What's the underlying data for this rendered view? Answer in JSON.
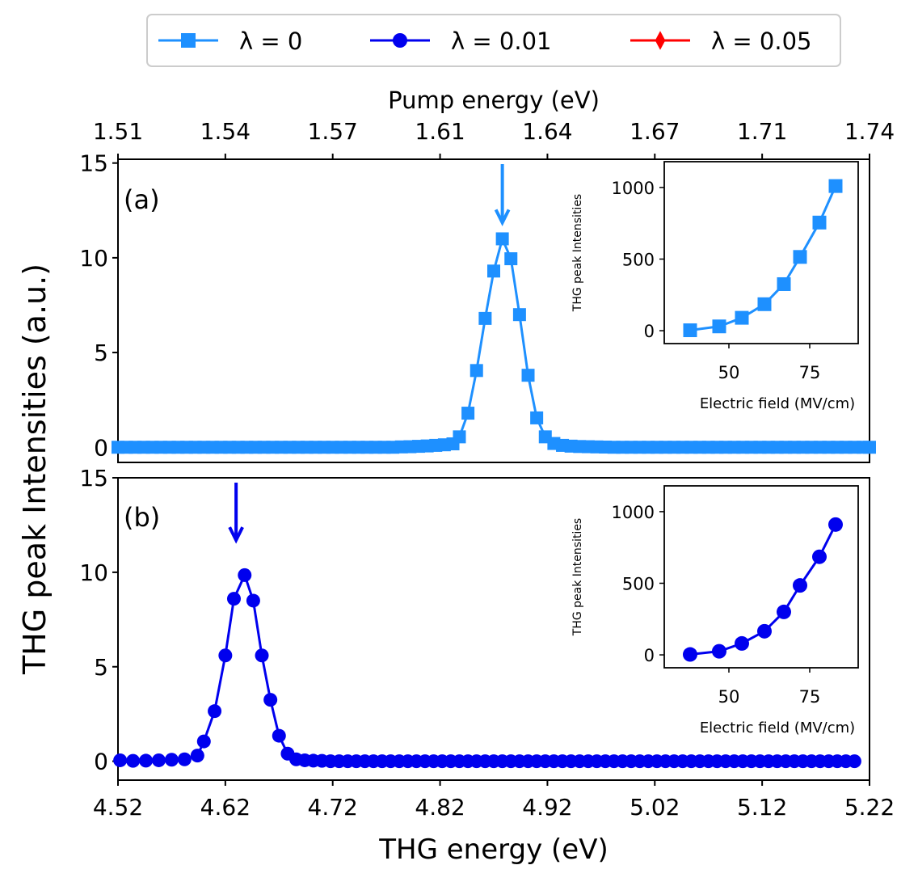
{
  "chart_data": {
    "type": "line",
    "y_axis_label": "THG peak Intensities (a.u.)",
    "legend": {
      "placement": "top-center",
      "entries": [
        {
          "label": "λ = 0",
          "color": "#1e90ff",
          "marker": "square"
        },
        {
          "label": "λ = 0.01",
          "color": "#0000ee",
          "marker": "circle"
        },
        {
          "label": "λ = 0.05",
          "color": "#ff0000",
          "marker": "diamond"
        }
      ]
    },
    "top_axis": {
      "label": "Pump energy (eV)",
      "tick_labels": [
        "1.51",
        "1.54",
        "1.57",
        "1.61",
        "1.64",
        "1.67",
        "1.71",
        "1.74"
      ]
    },
    "bottom_axis": {
      "label": "THG energy (eV)",
      "range": [
        4.52,
        5.22
      ],
      "tick_values": [
        4.52,
        4.62,
        4.72,
        4.82,
        4.92,
        5.02,
        5.12,
        5.22
      ],
      "tick_labels": [
        "4.52",
        "4.62",
        "4.72",
        "4.82",
        "4.92",
        "5.02",
        "5.12",
        "5.22"
      ]
    },
    "panels": [
      {
        "id": "a",
        "label": "(a)",
        "series_name": "λ = 0",
        "color": "#1e90ff",
        "marker": "square",
        "ylim": [
          -0.8,
          15.2
        ],
        "yticks": [
          0,
          5,
          10,
          15
        ],
        "arrow_x": 4.878,
        "x": [
          4.52,
          4.528,
          4.536,
          4.544,
          4.552,
          4.56,
          4.568,
          4.576,
          4.584,
          4.592,
          4.6,
          4.608,
          4.616,
          4.624,
          4.632,
          4.64,
          4.648,
          4.656,
          4.664,
          4.672,
          4.68,
          4.688,
          4.696,
          4.704,
          4.712,
          4.72,
          4.728,
          4.736,
          4.744,
          4.752,
          4.76,
          4.768,
          4.776,
          4.784,
          4.792,
          4.8,
          4.808,
          4.816,
          4.824,
          4.832,
          4.838,
          4.846,
          4.854,
          4.862,
          4.87,
          4.878,
          4.886,
          4.894,
          4.902,
          4.91,
          4.918,
          4.926,
          4.934,
          4.942,
          4.95,
          4.958,
          4.966,
          4.974,
          4.982,
          4.99,
          4.998,
          5.006,
          5.014,
          5.022,
          5.03,
          5.038,
          5.046,
          5.054,
          5.062,
          5.07,
          5.078,
          5.086,
          5.094,
          5.102,
          5.11,
          5.118,
          5.126,
          5.134,
          5.142,
          5.15,
          5.158,
          5.166,
          5.174,
          5.182,
          5.19,
          5.198,
          5.206,
          5.214,
          5.22
        ],
        "y": [
          0,
          0,
          0,
          0,
          0,
          0,
          0,
          0,
          0,
          0,
          0,
          0,
          0,
          0,
          0,
          0,
          0,
          0,
          0,
          0,
          0,
          0,
          0,
          0,
          0,
          0,
          0,
          0,
          0,
          0,
          0,
          0,
          0,
          0.02,
          0.03,
          0.05,
          0.07,
          0.1,
          0.13,
          0.18,
          0.55,
          1.8,
          4.05,
          6.8,
          9.3,
          11.0,
          9.95,
          7.0,
          3.8,
          1.55,
          0.55,
          0.2,
          0.1,
          0.06,
          0.04,
          0.03,
          0.02,
          0.01,
          0,
          0,
          0,
          0,
          0,
          0,
          0,
          0,
          0,
          0,
          0,
          0,
          0,
          0,
          0,
          0,
          0,
          0,
          0,
          0,
          0,
          0,
          0,
          0,
          0,
          0,
          0,
          0,
          0,
          0,
          0
        ],
        "inset": {
          "xlabel": "Electric field (MV/cm)",
          "ylabel": "THG peak Intensities",
          "xlim": [
            30,
            90
          ],
          "ylim": [
            -90,
            1180
          ],
          "xticks": [
            50,
            75
          ],
          "yticks": [
            0,
            500,
            1000
          ],
          "x": [
            38,
            47,
            54,
            61,
            67,
            72,
            78,
            83
          ],
          "y": [
            3,
            30,
            90,
            185,
            325,
            515,
            755,
            1010
          ]
        }
      },
      {
        "id": "b",
        "label": "(b)",
        "series_name": "λ = 0.01",
        "color": "#0000ee",
        "marker": "circle",
        "ylim": [
          -1.0,
          15
        ],
        "yticks": [
          0,
          5,
          10,
          15
        ],
        "arrow_x": 4.63,
        "x": [
          4.522,
          4.534,
          4.546,
          4.558,
          4.57,
          4.582,
          4.594,
          4.6,
          4.61,
          4.62,
          4.628,
          4.638,
          4.646,
          4.654,
          4.662,
          4.67,
          4.678,
          4.686,
          4.694,
          4.702,
          4.71,
          4.718,
          4.726,
          4.734,
          4.742,
          4.75,
          4.758,
          4.766,
          4.774,
          4.782,
          4.79,
          4.798,
          4.806,
          4.814,
          4.822,
          4.83,
          4.838,
          4.846,
          4.854,
          4.862,
          4.87,
          4.878,
          4.886,
          4.894,
          4.902,
          4.91,
          4.918,
          4.926,
          4.934,
          4.942,
          4.95,
          4.958,
          4.966,
          4.974,
          4.982,
          4.99,
          4.998,
          5.006,
          5.014,
          5.022,
          5.03,
          5.038,
          5.046,
          5.054,
          5.062,
          5.07,
          5.078,
          5.086,
          5.094,
          5.102,
          5.11,
          5.118,
          5.126,
          5.134,
          5.142,
          5.15,
          5.158,
          5.166,
          5.174,
          5.182,
          5.19,
          5.198,
          5.206
        ],
        "y": [
          0.05,
          0.02,
          0.03,
          0.05,
          0.08,
          0.1,
          0.3,
          1.05,
          2.65,
          5.6,
          8.6,
          9.85,
          8.5,
          5.6,
          3.25,
          1.35,
          0.4,
          0.1,
          0.05,
          0.03,
          0.02,
          0,
          0,
          0,
          0,
          0,
          0,
          0,
          0,
          0,
          0,
          0,
          0,
          0,
          0,
          0,
          0,
          0,
          0,
          0,
          0,
          0,
          0,
          0,
          0,
          0,
          0,
          0,
          0,
          0,
          0,
          0,
          0,
          0,
          0,
          0,
          0,
          0,
          0,
          0,
          0,
          0,
          0,
          0,
          0,
          0,
          0,
          0,
          0,
          0,
          0,
          0,
          0,
          0,
          0,
          0,
          0,
          0,
          0,
          0,
          0,
          0,
          0
        ],
        "inset": {
          "xlabel": "Electric field (MV/cm)",
          "ylabel": "THG peak Intensities",
          "xlim": [
            30,
            90
          ],
          "ylim": [
            -90,
            1180
          ],
          "xticks": [
            50,
            75
          ],
          "yticks": [
            0,
            500,
            1000
          ],
          "x": [
            38,
            47,
            54,
            61,
            67,
            72,
            78,
            83
          ],
          "y": [
            3,
            25,
            80,
            165,
            300,
            485,
            685,
            910
          ]
        }
      }
    ]
  }
}
